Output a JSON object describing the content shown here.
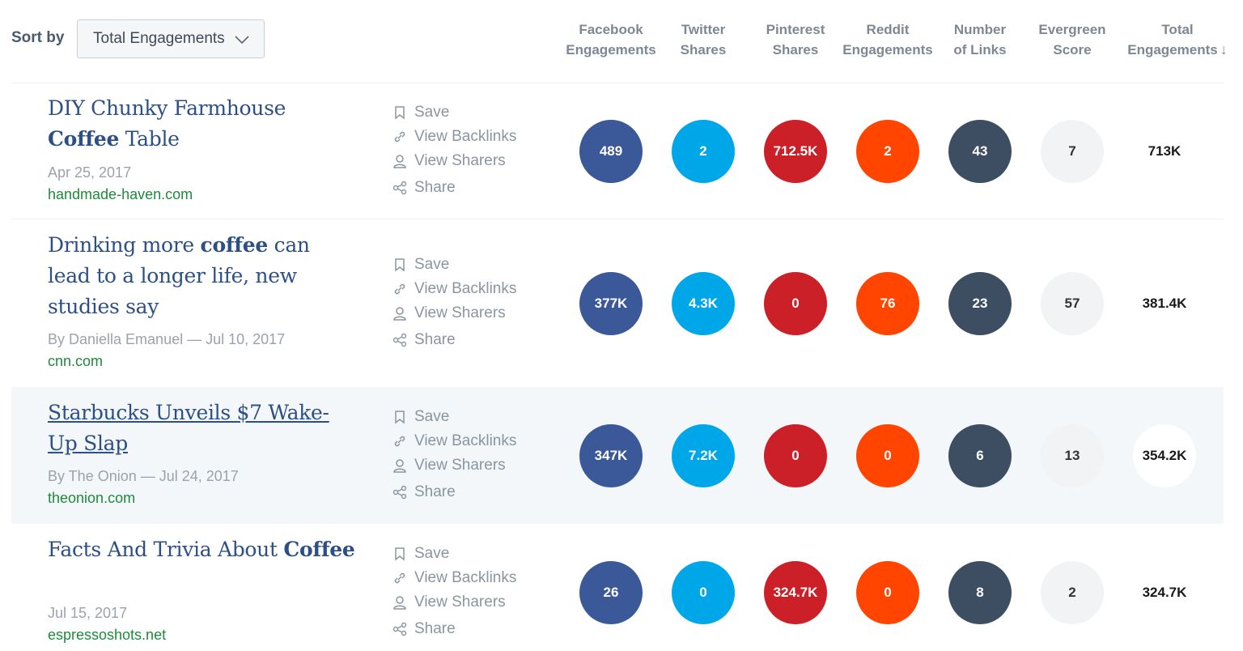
{
  "sort": {
    "label": "Sort by",
    "selected": "Total Engagements"
  },
  "columns": [
    {
      "line1": "Facebook",
      "line2": "Engagements"
    },
    {
      "line1": "Twitter",
      "line2": "Shares"
    },
    {
      "line1": "Pinterest",
      "line2": "Shares"
    },
    {
      "line1": "Reddit",
      "line2": "Engagements"
    },
    {
      "line1": "Number",
      "line2": "of Links"
    },
    {
      "line1": "Evergreen",
      "line2": "Score"
    },
    {
      "line1": "Total",
      "line2": "Engagements",
      "sort_arrow": "↓"
    }
  ],
  "actions": {
    "save": "Save",
    "backlinks": "View Backlinks",
    "sharers": "View Sharers",
    "share": "Share"
  },
  "articles": [
    {
      "title_parts": [
        "DIY Chunky Farmhouse ",
        "Coffee",
        " Table"
      ],
      "meta": "Apr 25, 2017",
      "domain": "handmade-haven.com",
      "facebook": "489",
      "twitter": "2",
      "pinterest": "712.5K",
      "reddit": "2",
      "links": "43",
      "evergreen": "7",
      "total": "713K"
    },
    {
      "title_parts": [
        "Drinking more ",
        "coffee",
        " can lead to a longer life, new studies say"
      ],
      "meta": "By Daniella Emanuel — Jul 10, 2017",
      "domain": "cnn.com",
      "facebook": "377K",
      "twitter": "4.3K",
      "pinterest": "0",
      "reddit": "76",
      "links": "23",
      "evergreen": "57",
      "total": "381.4K"
    },
    {
      "title_parts": [
        "Starbucks Unveils $7 Wake-Up Slap",
        "",
        ""
      ],
      "meta": "By The Onion — Jul 24, 2017",
      "domain": "theonion.com",
      "facebook": "347K",
      "twitter": "7.2K",
      "pinterest": "0",
      "reddit": "0",
      "links": "6",
      "evergreen": "13",
      "total": "354.2K"
    },
    {
      "title_parts": [
        "Facts And Trivia About ",
        "Coffee",
        ""
      ],
      "meta": "Jul 15, 2017",
      "domain": "espressoshots.net",
      "facebook": "26",
      "twitter": "0",
      "pinterest": "324.7K",
      "reddit": "0",
      "links": "8",
      "evergreen": "2",
      "total": "324.7K"
    }
  ],
  "colors": {
    "facebook": "#3b5998",
    "twitter": "#00a7e8",
    "pinterest": "#cb2027",
    "reddit": "#ff4500",
    "links": "#3d4e62",
    "evergreen": "#f2f3f4",
    "title": "#2c4f86",
    "domain": "#1e8a3a",
    "highlight_row": "#f3f7fa"
  }
}
